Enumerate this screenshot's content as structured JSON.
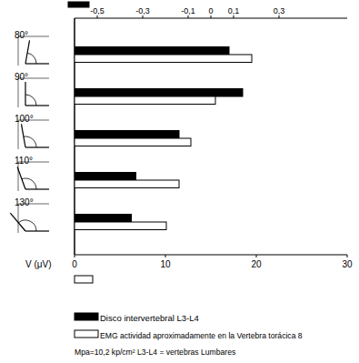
{
  "chart_data": {
    "type": "bar",
    "orientation": "horizontal",
    "categories": [
      "80°",
      "90°",
      "100°",
      "110°",
      "130°"
    ],
    "series": [
      {
        "name": "Disco intervertebral L3-L4",
        "color": "#000000",
        "axis": "y2",
        "values": [
          0.08,
          0.14,
          -0.14,
          -0.33,
          -0.35
        ]
      },
      {
        "name": "EMG actividad aproximadamente en la Vertebra torácica 8",
        "color": "#ffffff",
        "values": [
          19.5,
          15.5,
          12.8,
          11.5,
          10.1
        ]
      }
    ],
    "y_label": "V (μV)",
    "ylim": [
      0,
      30
    ],
    "yticks": [
      0,
      10,
      20,
      30
    ],
    "y2lim": [
      -0.6,
      0.6
    ],
    "y2ticks": [
      {
        "value": -0.5,
        "label": "-0,5"
      },
      {
        "value": -0.3,
        "label": "-0,3"
      },
      {
        "value": -0.1,
        "label": "-0,1"
      },
      0,
      {
        "value": 0.1,
        "label": "0,1"
      },
      {
        "value": 0.3,
        "label": "0,3"
      }
    ],
    "annotations": [
      "Mpa=10,2 kp/cm² L3-L4 = vertebras Lumbares"
    ],
    "legend": "bottom",
    "grid": false
  }
}
